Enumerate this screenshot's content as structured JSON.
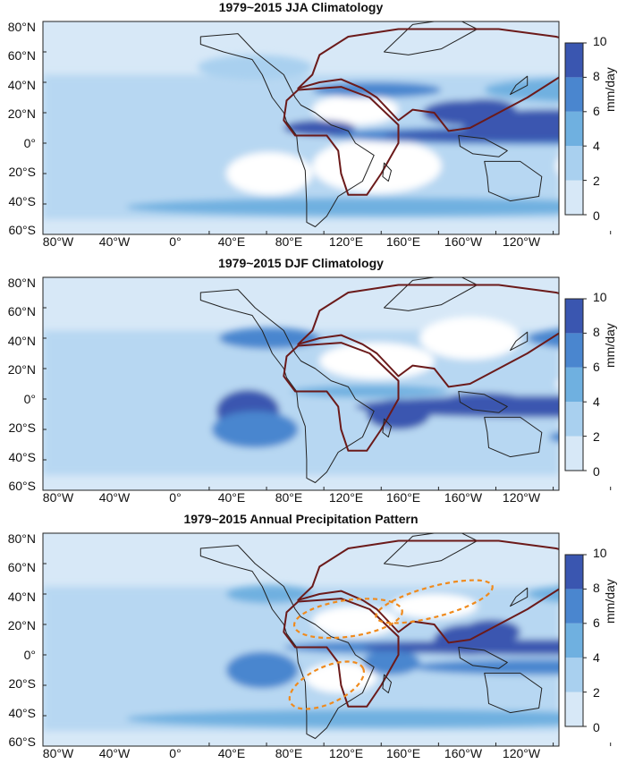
{
  "panels": [
    {
      "title": "1979~2015 JJA Climatology",
      "highlight_regions": false
    },
    {
      "title": "1979~2015 DJF Climatology",
      "highlight_regions": false
    },
    {
      "title": "1979~2015 Annual Precipitation Pattern",
      "highlight_regions": true
    }
  ],
  "lat_labels": [
    "80°N",
    "60°N",
    "40°N",
    "20°N",
    "0°",
    "20°S",
    "40°S",
    "60°S"
  ],
  "lon_labels": [
    "80°W",
    "40°W",
    "0°",
    "40°E",
    "80°E",
    "120°E",
    "160°E",
    "160°W",
    "120°W"
  ],
  "colorbar": {
    "unit": "mm/day",
    "ticks": [
      "10",
      "8",
      "6",
      "4",
      "2",
      "0"
    ],
    "colors": [
      "#ffffff",
      "#d7e8f7",
      "#a9d0ef",
      "#6fb0e0",
      "#4a86cf",
      "#3a56b0"
    ]
  },
  "colors": {
    "continent_outline": "#6b1a1a",
    "coastline": "#222222",
    "highlight_dash": "#f08a1c"
  }
}
